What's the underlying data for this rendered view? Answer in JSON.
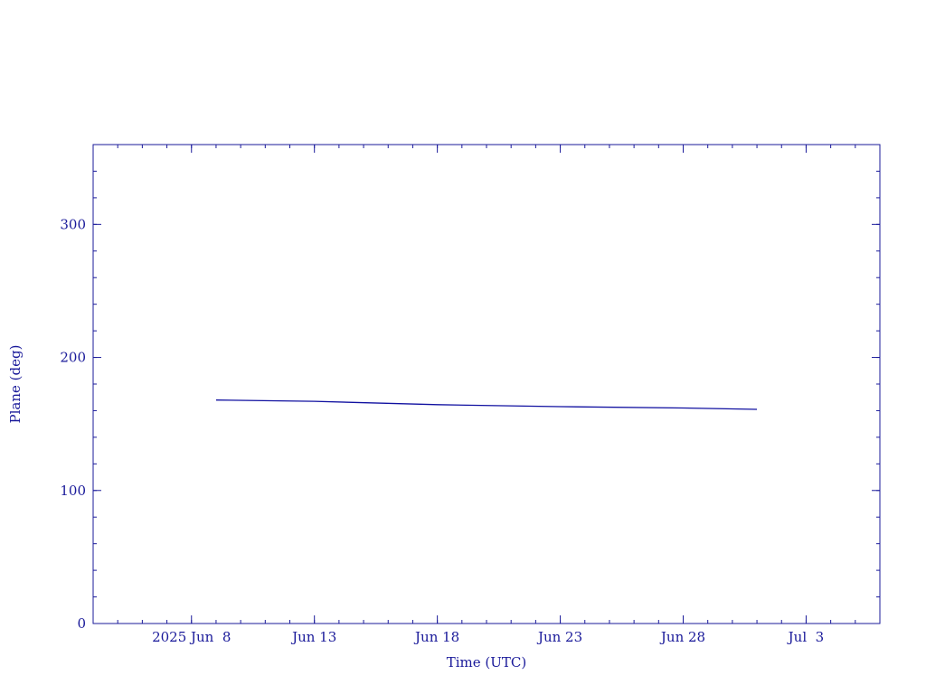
{
  "chart_data": {
    "type": "line",
    "x_label": "Time (UTC)",
    "y_label": "Plane (deg)",
    "x": [
      "2025-06-09",
      "2025-06-13",
      "2025-06-18",
      "2025-06-23",
      "2025-06-28",
      "2025-07-01"
    ],
    "values": [
      168,
      167,
      164.5,
      163,
      162,
      161
    ],
    "color": "#1010a0",
    "xlim": [
      "2025-06-04",
      "2025-07-06"
    ],
    "xticks": [
      {
        "value": "2025-06-08",
        "label": "2025 Jun  8"
      },
      {
        "value": "2025-06-13",
        "label": "Jun 13"
      },
      {
        "value": "2025-06-18",
        "label": "Jun 18"
      },
      {
        "value": "2025-06-23",
        "label": "Jun 23"
      },
      {
        "value": "2025-06-28",
        "label": "Jun 28"
      },
      {
        "value": "2025-07-03",
        "label": "Jul  3"
      }
    ],
    "ylim": [
      0,
      360
    ],
    "yticks": [
      0,
      100,
      200,
      300
    ]
  }
}
